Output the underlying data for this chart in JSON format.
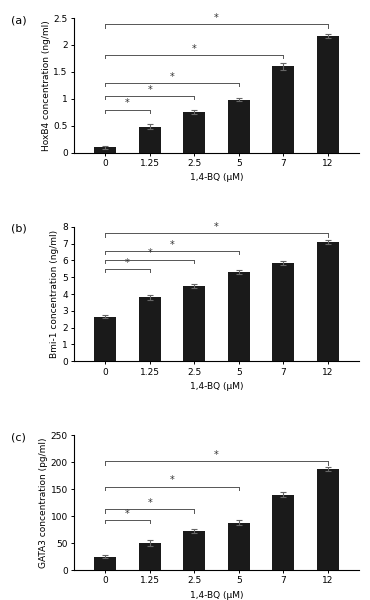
{
  "categories": [
    "0",
    "1.25",
    "2.5",
    "5",
    "7",
    "12"
  ],
  "panel_a": {
    "label": "(a)",
    "ylabel": "HoxB4 concentration (ng/ml)",
    "xlabel": "1,4-BQ (μM)",
    "ylim": [
      0,
      2.5
    ],
    "yticks": [
      0,
      0.5,
      1.0,
      1.5,
      2.0,
      2.5
    ],
    "yticklabels": [
      "0",
      "0.5",
      "1",
      "1.5",
      "2",
      "2.5"
    ],
    "values": [
      0.1,
      0.48,
      0.75,
      0.98,
      1.6,
      2.17
    ],
    "errors": [
      0.03,
      0.05,
      0.04,
      0.03,
      0.06,
      0.04
    ],
    "sig_brackets": [
      [
        0,
        1,
        0.8,
        "*"
      ],
      [
        0,
        2,
        1.05,
        "*"
      ],
      [
        0,
        3,
        1.3,
        "*"
      ],
      [
        0,
        4,
        1.82,
        "*"
      ],
      [
        0,
        5,
        2.38,
        "*"
      ]
    ]
  },
  "panel_b": {
    "label": "(b)",
    "ylabel": "Bmi-1 concentration (ng/ml)",
    "xlabel": "1,4-BQ (μM)",
    "ylim": [
      0,
      8
    ],
    "yticks": [
      0,
      1,
      2,
      3,
      4,
      5,
      6,
      7,
      8
    ],
    "yticklabels": [
      "0",
      "1",
      "2",
      "3",
      "4",
      "5",
      "6",
      "7",
      "8"
    ],
    "values": [
      2.65,
      3.8,
      4.5,
      5.3,
      5.85,
      7.1
    ],
    "errors": [
      0.1,
      0.15,
      0.12,
      0.12,
      0.1,
      0.1
    ],
    "sig_brackets": [
      [
        0,
        1,
        5.5,
        "*"
      ],
      [
        0,
        2,
        6.05,
        "*"
      ],
      [
        0,
        3,
        6.55,
        "*"
      ],
      [
        0,
        5,
        7.6,
        "*"
      ]
    ]
  },
  "panel_c": {
    "label": "(c)",
    "ylabel": "GATA3 concentration (pg/ml)",
    "xlabel": "1,4-BQ (μM)",
    "ylim": [
      0,
      250
    ],
    "yticks": [
      0,
      50,
      100,
      150,
      200,
      250
    ],
    "yticklabels": [
      "0",
      "50",
      "100",
      "150",
      "200",
      "250"
    ],
    "values": [
      25,
      50,
      73,
      88,
      140,
      188
    ],
    "errors": [
      3,
      5,
      4,
      4,
      5,
      4
    ],
    "sig_brackets": [
      [
        0,
        1,
        93,
        "*"
      ],
      [
        0,
        2,
        113,
        "*"
      ],
      [
        0,
        3,
        155,
        "*"
      ],
      [
        0,
        5,
        202,
        "*"
      ]
    ]
  },
  "bar_color": "#1a1a1a",
  "bar_width": 0.5,
  "bracket_color": "#555555",
  "fontsize_label": 6.5,
  "fontsize_tick": 6.5,
  "fontsize_panel": 8,
  "fontsize_star": 7
}
